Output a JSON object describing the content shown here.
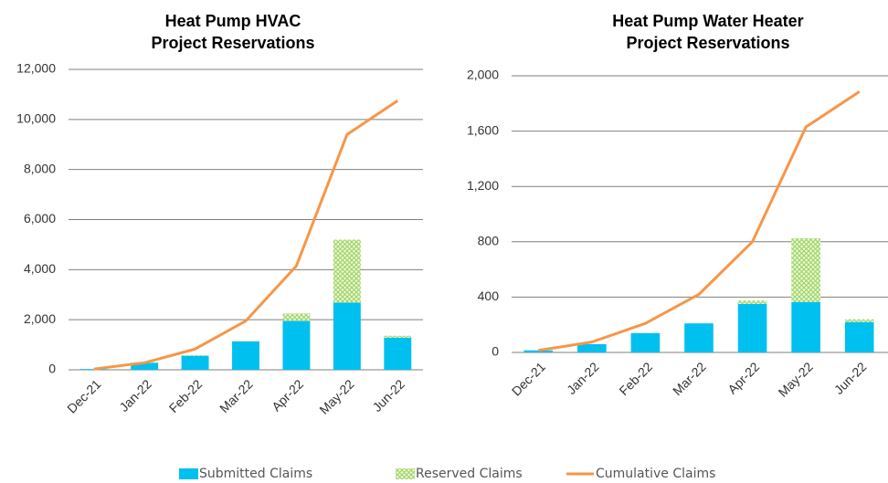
{
  "chart_data": [
    {
      "type": "bar",
      "stacked": true,
      "title": [
        "Heat Pump HVAC",
        "Project Reservations"
      ],
      "categories": [
        "Dec-21",
        "Jan-22",
        "Feb-22",
        "Mar-22",
        "Apr-22",
        "May-22",
        "Jun-22"
      ],
      "series": [
        {
          "name": "Submitted Claims",
          "type": "bar",
          "color": "#00c0ef",
          "values": [
            30,
            280,
            560,
            1130,
            1950,
            2680,
            1280
          ]
        },
        {
          "name": "Reserved Claims",
          "type": "bar",
          "pattern": "crosshatch",
          "color": "#92d050",
          "values": [
            0,
            20,
            20,
            20,
            300,
            2520,
            80
          ]
        },
        {
          "name": "Cumulative Claims",
          "type": "line",
          "color": "#f79646",
          "values": [
            30,
            280,
            830,
            1950,
            4150,
            9400,
            10750
          ]
        }
      ],
      "ylim": [
        0,
        12000
      ],
      "yticks": [
        0,
        {
          "value": 2000,
          "label": "2,000"
        },
        {
          "value": 4000,
          "label": "4,000"
        },
        {
          "value": 6000,
          "label": "6,000"
        },
        {
          "value": 8000,
          "label": "8,000"
        },
        {
          "value": 10000,
          "label": "10,000"
        },
        {
          "value": 12000,
          "label": "12,000"
        }
      ],
      "grid": true
    },
    {
      "type": "bar",
      "stacked": true,
      "title": [
        "Heat Pump Water Heater",
        "Project Reservations"
      ],
      "categories": [
        "Dec-21",
        "Jan-22",
        "Feb-22",
        "Mar-22",
        "Apr-22",
        "May-22",
        "Jun-22"
      ],
      "series": [
        {
          "name": "Submitted Claims",
          "type": "bar",
          "color": "#00c0ef",
          "values": [
            15,
            60,
            140,
            210,
            350,
            365,
            220
          ]
        },
        {
          "name": "Reserved Claims",
          "type": "bar",
          "pattern": "crosshatch",
          "color": "#92d050",
          "values": [
            0,
            0,
            0,
            0,
            25,
            460,
            20
          ]
        },
        {
          "name": "Cumulative Claims",
          "type": "line",
          "color": "#f79646",
          "values": [
            15,
            75,
            210,
            420,
            800,
            1630,
            1885
          ]
        }
      ],
      "ylim": [
        0,
        2000
      ],
      "yticks": [
        0,
        400,
        800,
        {
          "value": 1200,
          "label": "1,200"
        },
        {
          "value": 1600,
          "label": "1,600"
        },
        {
          "value": 2000,
          "label": "2,000"
        }
      ],
      "grid": true
    }
  ]
}
